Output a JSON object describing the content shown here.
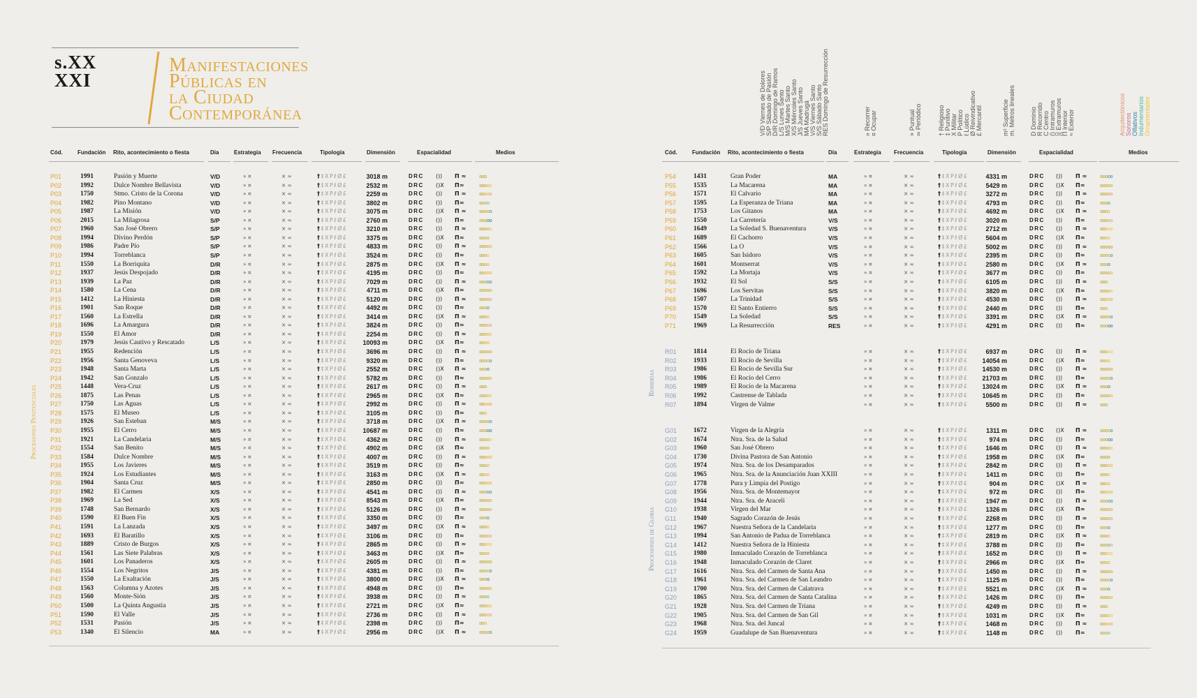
{
  "title": {
    "century_line1": "s.XX",
    "century_line2": "XXI",
    "main": [
      "Manifestaciones",
      "Públicas en",
      "la Ciudad",
      "Contemporánea"
    ]
  },
  "headers": [
    "Cód.",
    "Fundación",
    "Rito, acontecimiento o fiesta",
    "Día",
    "Estrategia",
    "Frecuencia",
    "Tipología",
    "Dimensión",
    "Espacialidad",
    "Medios"
  ],
  "legend": {
    "days": [
      "V/D Viernes de Dolores",
      "S/P Sábado de Pasión",
      "D/R Domingo de Ramos",
      "L/S Lunes Santo",
      "M/S Martes Santo",
      "X/S Miércoles Santo",
      "J/S Jueves Santo",
      "MA Madrugá",
      "V/S Viernes Santo",
      "S/S Sábado Santo",
      "RES Domingo de Resurrección"
    ],
    "strategy": [
      "» Recorrer",
      "¤ Ocupar"
    ],
    "frequency": [
      "× Puntual",
      "∞ Periódico"
    ],
    "typology": [
      "† Religioso",
      "‡ Punitivo",
      "X Militar",
      "P Político",
      "ℓ Lúdico",
      "Ø Reivindicativo",
      "£ Mercantil"
    ],
    "dimension": [
      "m² Superficie",
      "m. Metros lineales"
    ],
    "spatial": [
      "D Dominio",
      "R Recorrido",
      "C Centro",
      "() Intramuros",
      ")( Extramuros",
      "Π Interior",
      "≈ Exterior"
    ],
    "media": [
      "Arquitectónicos",
      "Sonoros",
      "Olfativos",
      "Indumentarios",
      "Ornamentales"
    ]
  },
  "sections": {
    "penitential": "Procesiones Penitenciales",
    "romerias": "Romerías",
    "gloria": "Procesiones de Gloria"
  },
  "symbols": {
    "estr": "» ¤",
    "frec": "× ∞",
    "tip": "†‡XPℓØ£",
    "esp": "DRC"
  },
  "colors": {
    "gold": "#e1a83f",
    "code_p": "#e2a337",
    "code_rg": "#8a9bc4",
    "media": [
      "#e49473",
      "#c9688e",
      "#2c84a8",
      "#4fb6a8",
      "#f0c13a"
    ]
  },
  "left_rows": [
    [
      "P01",
      "1991",
      "Pasión y Muerte",
      "V/D",
      "3018 m"
    ],
    [
      "P02",
      "1992",
      "Dulce Nombre Bellavista",
      "V/D",
      "2532 m"
    ],
    [
      "P03",
      "1750",
      "Stmo. Cristo de la Corona",
      "V/D",
      "2259 m"
    ],
    [
      "P04",
      "1982",
      "Pino Montano",
      "V/D",
      "3802 m"
    ],
    [
      "P05",
      "1987",
      "La Misión",
      "V/D",
      "3075 m"
    ],
    [
      "P06",
      "2015",
      "La Milagrosa",
      "S/P",
      "2760 m"
    ],
    [
      "P07",
      "1960",
      "San José Obrero",
      "S/P",
      "3210 m"
    ],
    [
      "P08",
      "1994",
      "Divino Perdón",
      "S/P",
      "3375 m"
    ],
    [
      "P09",
      "1986",
      "Padre Pío",
      "S/P",
      "4833 m"
    ],
    [
      "P10",
      "1994",
      "Torreblanca",
      "S/P",
      "3524 m"
    ],
    [
      "P11",
      "1550",
      "La Borriquita",
      "D/R",
      "2875 m"
    ],
    [
      "P12",
      "1937",
      "Jesús Despojado",
      "D/R",
      "4195 m"
    ],
    [
      "P13",
      "1939",
      "La Paz",
      "D/R",
      "7029 m"
    ],
    [
      "P14",
      "1580",
      "La Cena",
      "D/R",
      "4711 m"
    ],
    [
      "P15",
      "1412",
      "La Hiniesta",
      "D/R",
      "5120 m"
    ],
    [
      "P16",
      "1901",
      "San Roque",
      "D/R",
      "4492 m"
    ],
    [
      "P17",
      "1560",
      "La Estrella",
      "D/R",
      "3414 m"
    ],
    [
      "P18",
      "1696",
      "La Amargura",
      "D/R",
      "3824 m"
    ],
    [
      "P19",
      "1550",
      "El Amor",
      "D/R",
      "2254 m"
    ],
    [
      "P20",
      "1979",
      "Jesús Cautivo y Rescatado",
      "L/S",
      "10093 m"
    ],
    [
      "P21",
      "1955",
      "Redención",
      "L/S",
      "3696 m"
    ],
    [
      "P22",
      "1956",
      "Santa Genoveva",
      "L/S",
      "9320 m"
    ],
    [
      "P23",
      "1948",
      "Santa Marta",
      "L/S",
      "2552 m"
    ],
    [
      "P24",
      "1942",
      "San Gonzalo",
      "L/S",
      "5782 m"
    ],
    [
      "P25",
      "1448",
      "Vera-Cruz",
      "L/S",
      "2617 m"
    ],
    [
      "P26",
      "1875",
      "Las Penas",
      "L/S",
      "2965 m"
    ],
    [
      "P27",
      "1750",
      "Las Aguas",
      "L/S",
      "2992 m"
    ],
    [
      "P28",
      "1575",
      "El Museo",
      "L/S",
      "3105 m"
    ],
    [
      "P29",
      "1926",
      "San Esteban",
      "M/S",
      "3718 m"
    ],
    [
      "P30",
      "1955",
      "El Cerro",
      "M/S",
      "10687 m"
    ],
    [
      "P31",
      "1921",
      "La Candelaria",
      "M/S",
      "4362 m"
    ],
    [
      "P32",
      "1554",
      "San Benito",
      "M/S",
      "4902 m"
    ],
    [
      "P33",
      "1584",
      "Dulce Nombre",
      "M/S",
      "4007 m"
    ],
    [
      "P34",
      "1955",
      "Los Javieres",
      "M/S",
      "3519 m"
    ],
    [
      "P35",
      "1924",
      "Los Estudiantes",
      "M/S",
      "3163 m"
    ],
    [
      "P36",
      "1904",
      "Santa Cruz",
      "M/S",
      "2850 m"
    ],
    [
      "P37",
      "1982",
      "El Carmen",
      "X/S",
      "4541 m"
    ],
    [
      "P38",
      "1969",
      "La Sed",
      "X/S",
      "8543 m"
    ],
    [
      "P39",
      "1748",
      "San Bernardo",
      "X/S",
      "5126 m"
    ],
    [
      "P40",
      "1590",
      "El Buen Fin",
      "X/S",
      "3350 m"
    ],
    [
      "P41",
      "1591",
      "La Lanzada",
      "X/S",
      "3497 m"
    ],
    [
      "P42",
      "1693",
      "El Baratillo",
      "X/S",
      "3106 m"
    ],
    [
      "P43",
      "1889",
      "Cristo de Burgos",
      "X/S",
      "2865 m"
    ],
    [
      "P44",
      "1561",
      "Las Siete Palabras",
      "X/S",
      "3463 m"
    ],
    [
      "P45",
      "1601",
      "Los Panaderos",
      "X/S",
      "2605 m"
    ],
    [
      "P46",
      "1554",
      "Los Negritos",
      "J/S",
      "4381 m"
    ],
    [
      "P47",
      "1550",
      "La Exaltación",
      "J/S",
      "3800 m"
    ],
    [
      "P48",
      "1563",
      "Columna y Azotes",
      "J/S",
      "4948 m"
    ],
    [
      "P49",
      "1560",
      "Monte-Sión",
      "J/S",
      "3938 m"
    ],
    [
      "P50",
      "1500",
      "La Quinta Angustia",
      "J/S",
      "2721 m"
    ],
    [
      "P51",
      "1590",
      "El Valle",
      "J/S",
      "2736 m"
    ],
    [
      "P52",
      "1531",
      "Pasión",
      "J/S",
      "2398 m"
    ],
    [
      "P53",
      "1340",
      "El Silencio",
      "MA",
      "2956 m"
    ]
  ],
  "right_rows_p": [
    [
      "P54",
      "1431",
      "Gran Poder",
      "MA",
      "4331 m"
    ],
    [
      "P55",
      "1535",
      "La Macarena",
      "MA",
      "5429 m"
    ],
    [
      "P56",
      "1571",
      "El Calvario",
      "MA",
      "3272 m"
    ],
    [
      "P57",
      "1595",
      "La Esperanza de Triana",
      "MA",
      "4793 m"
    ],
    [
      "P58",
      "1753",
      "Los Gitanos",
      "MA",
      "4692 m"
    ],
    [
      "P59",
      "1550",
      "La Carretería",
      "V/S",
      "3020 m"
    ],
    [
      "P60",
      "1649",
      "La Soledad S. Buenaventura",
      "V/S",
      "2712 m"
    ],
    [
      "P61",
      "1689",
      "El Cachorro",
      "V/S",
      "5604 m"
    ],
    [
      "P62",
      "1566",
      "La O",
      "V/S",
      "5002 m"
    ],
    [
      "P63",
      "1605",
      "San Isidoro",
      "V/S",
      "2395 m"
    ],
    [
      "P64",
      "1601",
      "Montserrat",
      "V/S",
      "2580 m"
    ],
    [
      "P65",
      "1592",
      "La Mortaja",
      "V/S",
      "3677 m"
    ],
    [
      "P66",
      "1932",
      "El Sol",
      "S/S",
      "6105 m"
    ],
    [
      "P67",
      "1696",
      "Los Servitas",
      "S/S",
      "3820 m"
    ],
    [
      "P68",
      "1507",
      "La Trinidad",
      "S/S",
      "4530 m"
    ],
    [
      "P69",
      "1570",
      "El Santo Entierro",
      "S/S",
      "2440 m"
    ],
    [
      "P70",
      "1549",
      "La Soledad",
      "S/S",
      "3391 m"
    ],
    [
      "P71",
      "1969",
      "La Resurrección",
      "RES",
      "4291 m"
    ]
  ],
  "right_rows_r": [
    [
      "R01",
      "1814",
      "El Rocío de Triana",
      "",
      "6937 m"
    ],
    [
      "R02",
      "1933",
      "El Rocío de Sevilla",
      "",
      "14054 m"
    ],
    [
      "R03",
      "1986",
      "El Rocío de Sevilla Sur",
      "",
      "14530 m"
    ],
    [
      "R04",
      "1986",
      "El Rocío del Cerro",
      "",
      "21703 m"
    ],
    [
      "R05",
      "1989",
      "El Rocío de la Macarena",
      "",
      "13024 m"
    ],
    [
      "R06",
      "1992",
      "Castrense de Tablada",
      "",
      "10645 m"
    ],
    [
      "R07",
      "1894",
      "Virgen de Valme",
      "",
      "5500 m"
    ]
  ],
  "right_rows_g": [
    [
      "G01",
      "1672",
      "Virgen de la Alegría",
      "",
      "1311 m"
    ],
    [
      "G02",
      "1674",
      "Ntra. Sra. de la Salud",
      "",
      "974 m"
    ],
    [
      "G03",
      "1960",
      "San José Obrero",
      "",
      "1646 m"
    ],
    [
      "G04",
      "1730",
      "Divina Pastora de San Antonio",
      "",
      "1958 m"
    ],
    [
      "G05",
      "1974",
      "Ntra. Sra. de los Desamparados",
      "",
      "2842 m"
    ],
    [
      "G06",
      "1965",
      "Ntra. Sra. de la Anunciación Juan XXIII",
      "",
      "1411 m"
    ],
    [
      "G07",
      "1778",
      "Pura y Limpia del Postigo",
      "",
      "904 m"
    ],
    [
      "G08",
      "1956",
      "Ntra. Sra. de Montemayor",
      "",
      "972 m"
    ],
    [
      "G09",
      "1944",
      "Ntra. Sra. de Araceli",
      "",
      "1947 m"
    ],
    [
      "G10",
      "1938",
      "Virgen del Mar",
      "",
      "1326 m"
    ],
    [
      "G11",
      "1940",
      "Sagrado Corazón de Jesús",
      "",
      "2268 m"
    ],
    [
      "G12",
      "1967",
      "Nuestra Señora de la Candelaria",
      "",
      "1277 m"
    ],
    [
      "G13",
      "1994",
      "San Antonio de Padua de Torreblanca",
      "",
      "2819 m"
    ],
    [
      "G14",
      "1412",
      "Nuestra Señora de la Hiniesta",
      "",
      "3788 m"
    ],
    [
      "G15",
      "1980",
      "Inmaculado Corazón de Torreblanca",
      "",
      "1652 m"
    ],
    [
      "G16",
      "1948",
      "Inmaculado Corazón de Claret",
      "",
      "2966 m"
    ],
    [
      "G17",
      "1616",
      "Ntra. Sra. del Carmen de Santa Ana",
      "",
      "1450 m"
    ],
    [
      "G18",
      "1961",
      "Ntra. Sra. del Carmen de San Leandro",
      "",
      "1125 m"
    ],
    [
      "G19",
      "1700",
      "Ntra. Sra. del Carmen de Calatrava",
      "",
      "5521 m"
    ],
    [
      "G20",
      "1865",
      "Ntra. Sra. del Carmen de Santa Catalina",
      "",
      "1426 m"
    ],
    [
      "G21",
      "1928",
      "Ntra. Sra. del Carmen de Triana",
      "",
      "4249 m"
    ],
    [
      "G22",
      "1905",
      "Ntra. Sra. del Carmen de San Gil",
      "",
      "1031 m"
    ],
    [
      "G23",
      "1968",
      "Ntra. Sra. del Juncal",
      "",
      "1468 m"
    ],
    [
      "G24",
      "1959",
      "Guadalupe de San Buenaventura",
      "",
      "1148 m"
    ]
  ]
}
